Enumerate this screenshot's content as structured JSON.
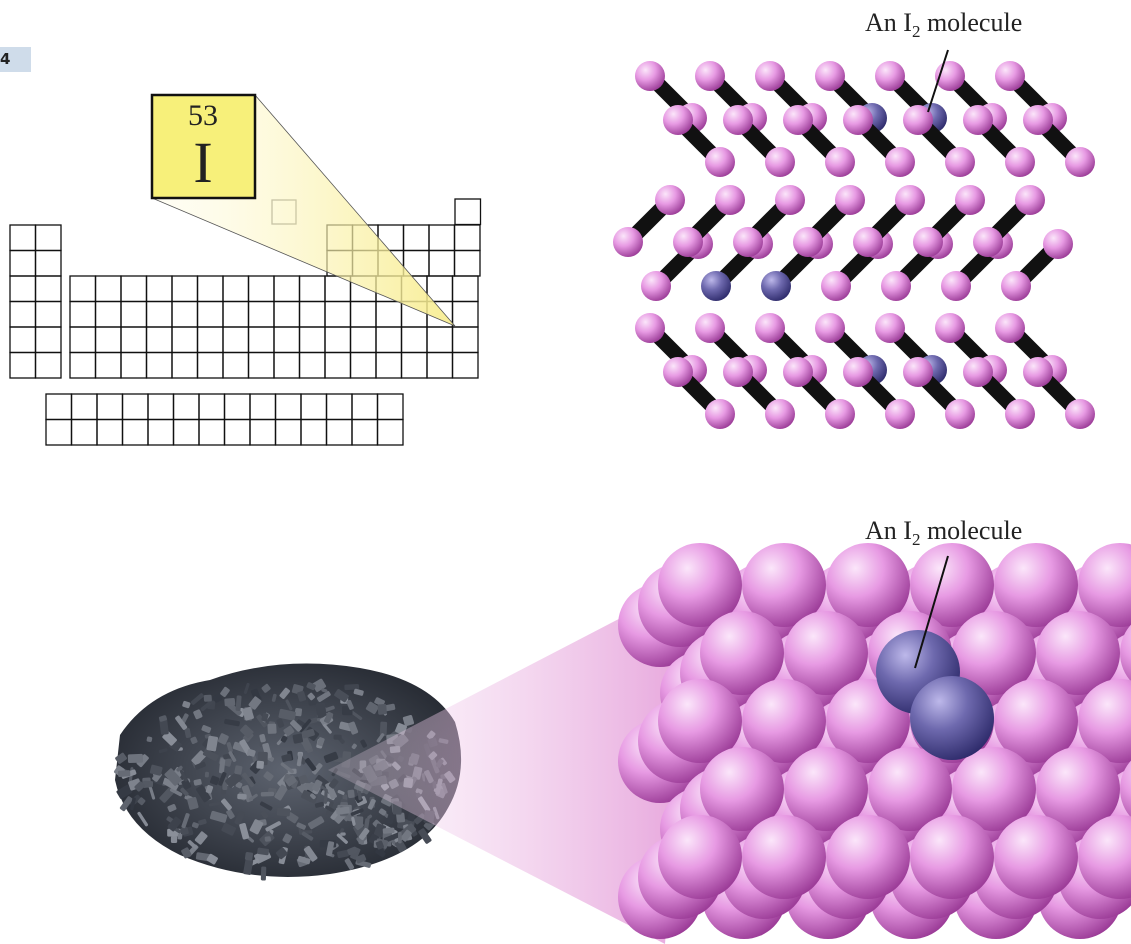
{
  "page_tag": "4",
  "element": {
    "atomic_number": "53",
    "symbol": "I"
  },
  "callouts": {
    "top": {
      "prefix": "An I",
      "subscript": "2",
      "suffix": " molecule"
    },
    "bottom": {
      "prefix": "An I",
      "subscript": "2",
      "suffix": " molecule"
    }
  },
  "colors": {
    "atom_pink": "#e79ae3",
    "atom_pink_dark": "#9a3a96",
    "highlight_purple": "#8c87c7",
    "highlight_purple_dark": "#2d2a6a",
    "tile_fill": "#f7f07a",
    "crystal_gray": "#3c414c",
    "page_tag_bg": "#cfdcea"
  }
}
